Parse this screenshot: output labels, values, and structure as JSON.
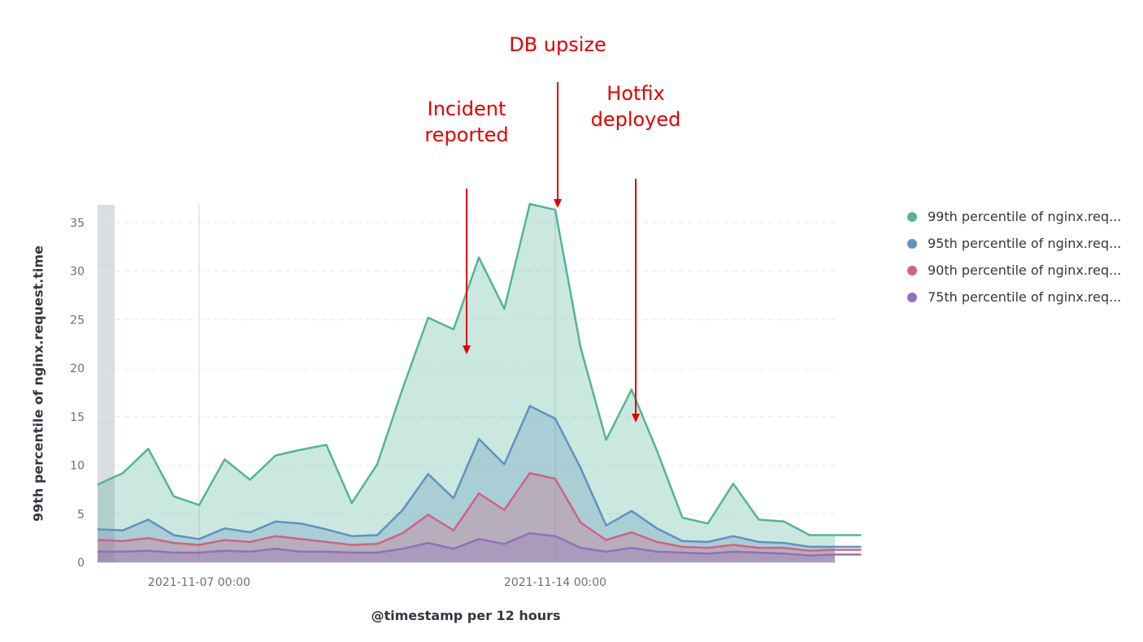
{
  "chart_data": {
    "type": "area",
    "xlabel": "@timestamp per 12 hours",
    "ylabel": "99th percentile of nginx.request.time",
    "ylim": [
      0,
      37
    ],
    "y_ticks": [
      0,
      5,
      10,
      15,
      20,
      25,
      30,
      35
    ],
    "x_tick_labels": [
      "2021-11-07 00:00",
      "2021-11-14 00:00"
    ],
    "x": [
      "2021-11-05 12:00",
      "2021-11-06 00:00",
      "2021-11-06 12:00",
      "2021-11-07 00:00",
      "2021-11-07 12:00",
      "2021-11-08 00:00",
      "2021-11-08 12:00",
      "2021-11-09 00:00",
      "2021-11-09 12:00",
      "2021-11-10 00:00",
      "2021-11-10 12:00",
      "2021-11-11 00:00",
      "2021-11-11 12:00",
      "2021-11-12 00:00",
      "2021-11-12 12:00",
      "2021-11-13 00:00",
      "2021-11-13 12:00",
      "2021-11-14 00:00",
      "2021-11-14 12:00",
      "2021-11-15 00:00",
      "2021-11-15 12:00",
      "2021-11-16 00:00",
      "2021-11-16 12:00",
      "2021-11-17 00:00",
      "2021-11-17 12:00",
      "2021-11-18 00:00",
      "2021-11-18 12:00",
      "2021-11-19 00:00",
      "2021-11-19 12:00",
      "2021-11-20 00:00"
    ],
    "series": [
      {
        "name": "99th percentile of nginx.req...",
        "color": "#54b399",
        "values": [
          9.2,
          11.7,
          6.8,
          5.9,
          10.6,
          8.5,
          11.0,
          11.6,
          12.1,
          6.1,
          10.1,
          17.9,
          25.2,
          24.0,
          31.4,
          26.1,
          36.9,
          36.3,
          22.1,
          12.6,
          17.8,
          11.5,
          4.6,
          4.0,
          8.1,
          4.4,
          4.2,
          2.8,
          2.8,
          2.8
        ]
      },
      {
        "name": "95th percentile of nginx.req...",
        "color": "#6092c0",
        "values": [
          3.3,
          4.4,
          2.8,
          2.4,
          3.5,
          3.1,
          4.2,
          4.0,
          3.4,
          2.7,
          2.8,
          5.4,
          9.1,
          6.6,
          12.7,
          10.1,
          16.1,
          14.8,
          9.7,
          3.8,
          5.3,
          3.5,
          2.2,
          2.1,
          2.7,
          2.1,
          2.0,
          1.6,
          1.6,
          1.6
        ]
      },
      {
        "name": "90th percentile of nginx.req...",
        "color": "#d36086",
        "values": [
          2.2,
          2.5,
          2.0,
          1.8,
          2.3,
          2.1,
          2.7,
          2.4,
          2.1,
          1.8,
          1.9,
          3.0,
          4.9,
          3.3,
          7.1,
          5.4,
          9.2,
          8.6,
          4.1,
          2.3,
          3.1,
          2.1,
          1.6,
          1.5,
          1.8,
          1.5,
          1.5,
          1.2,
          1.3,
          1.3
        ]
      },
      {
        "name": "75th percentile of nginx.req...",
        "color": "#9170b8",
        "values": [
          1.1,
          1.2,
          1.0,
          1.0,
          1.2,
          1.1,
          1.4,
          1.1,
          1.1,
          1.0,
          1.0,
          1.4,
          2.0,
          1.4,
          2.4,
          1.9,
          3.0,
          2.7,
          1.5,
          1.1,
          1.5,
          1.1,
          1.0,
          0.9,
          1.1,
          1.0,
          0.9,
          0.7,
          0.8,
          0.8
        ]
      }
    ],
    "annotations": [
      {
        "lines": [
          "Incident",
          "reported"
        ],
        "x": "2021-11-13 00:00"
      },
      {
        "lines": [
          "DB upsize"
        ],
        "x": "2021-11-14 00:00"
      },
      {
        "lines": [
          "Hotfix",
          "deployed"
        ],
        "x": "2021-11-15 12:00"
      }
    ],
    "legend_position": "right"
  }
}
